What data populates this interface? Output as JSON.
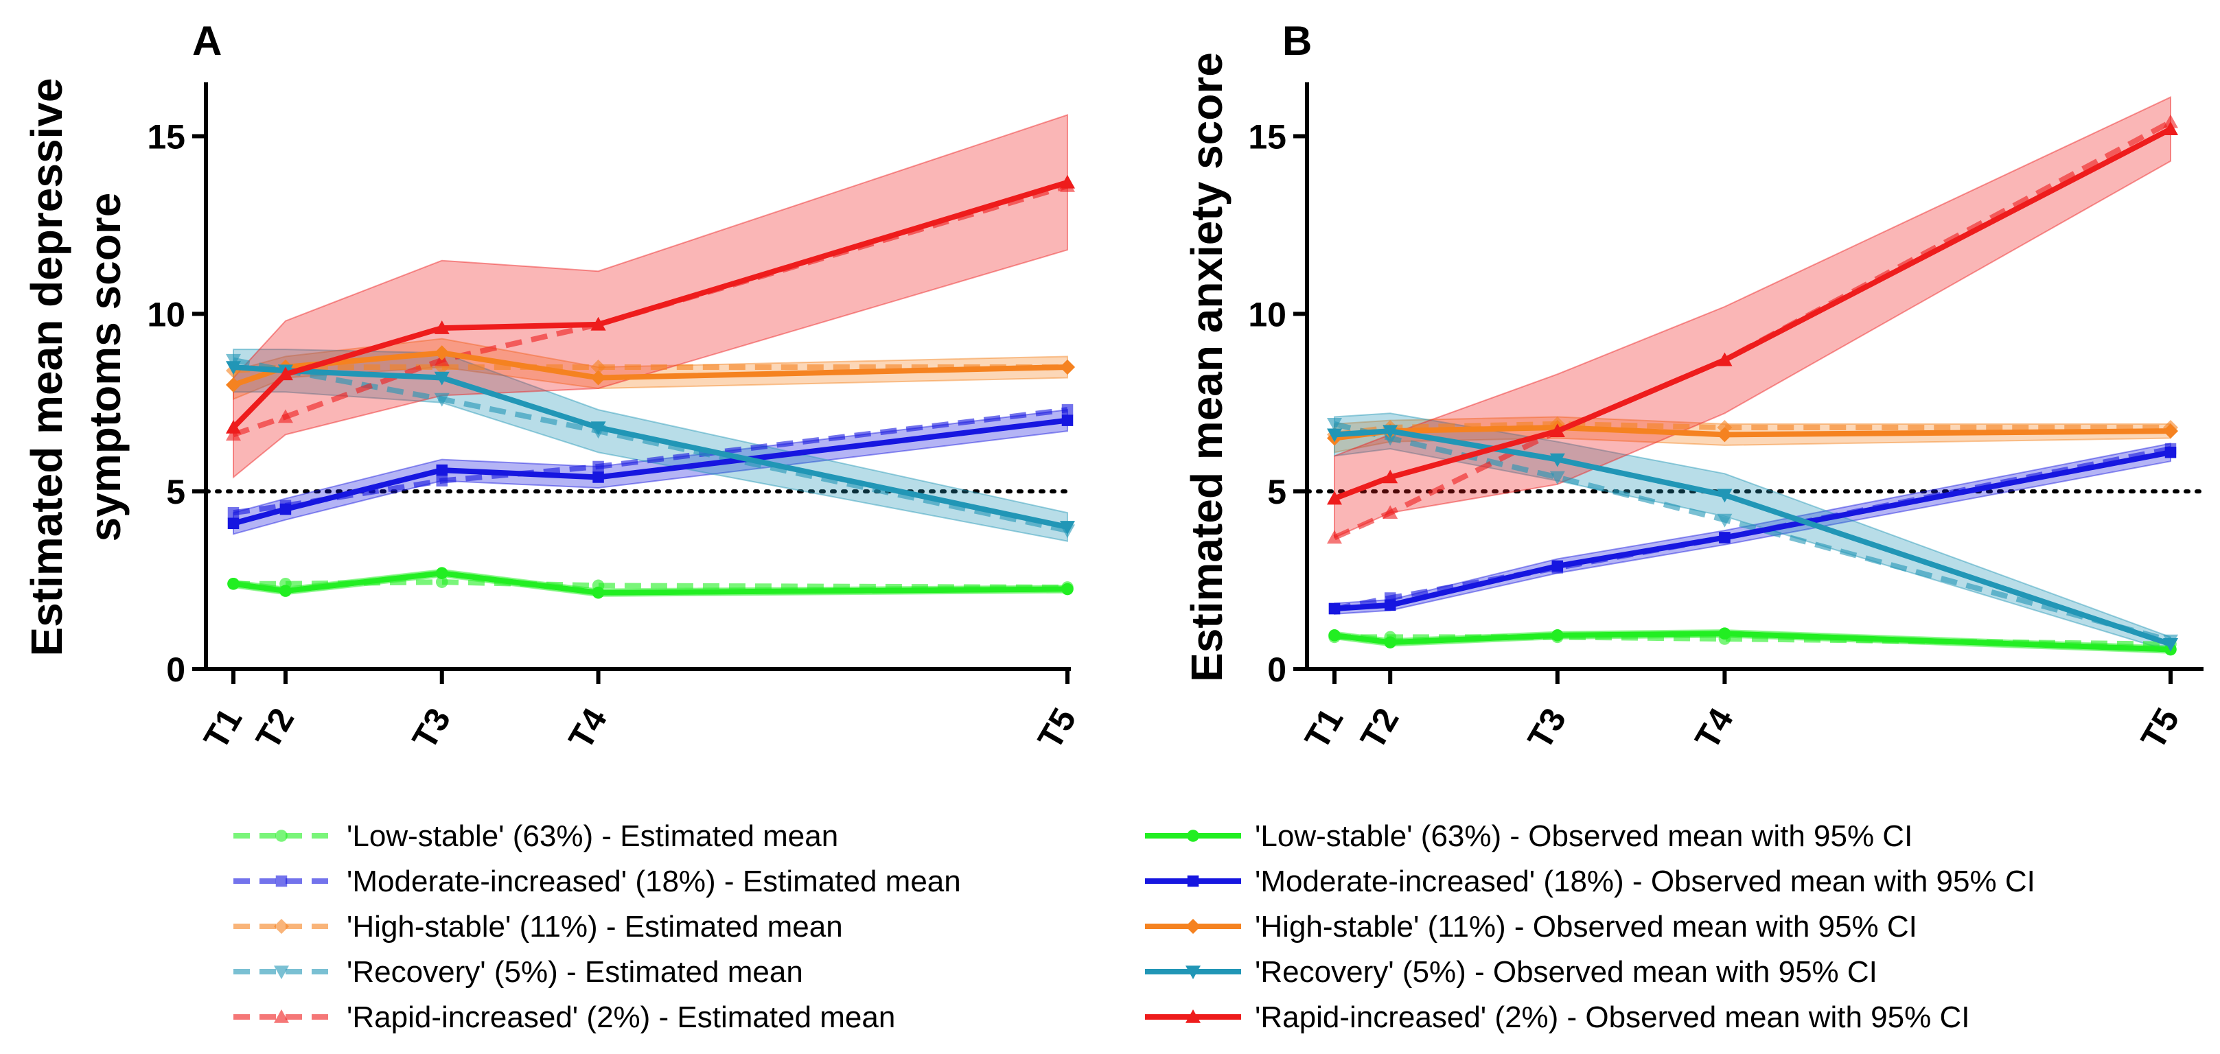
{
  "chart_data": [
    {
      "type": "line",
      "panel_label": "A",
      "ylabel_lines": [
        "Estimated mean depressive",
        "symptoms score"
      ],
      "x_categories": [
        "T1",
        "T2",
        "T3",
        "T4",
        "T5"
      ],
      "x_positions": [
        0,
        1,
        4,
        7,
        16
      ],
      "ylim": [
        0,
        17
      ],
      "yticks": [
        "0",
        "5",
        "10",
        "15"
      ],
      "reference_line": 5,
      "series": [
        {
          "name": "'Low-stable' (63%)",
          "color": "#22ee22",
          "marker": "circle",
          "observed": [
            2.4,
            2.2,
            2.7,
            2.15,
            2.25
          ],
          "ci_low": [
            2.3,
            2.1,
            2.6,
            2.05,
            2.15
          ],
          "ci_high": [
            2.5,
            2.3,
            2.8,
            2.25,
            2.35
          ],
          "estimated": [
            2.4,
            2.4,
            2.45,
            2.35,
            2.3
          ]
        },
        {
          "name": "'Moderate-increased' (18%)",
          "color": "#1616e0",
          "marker": "square",
          "observed": [
            4.1,
            4.5,
            5.6,
            5.4,
            7.0
          ],
          "ci_low": [
            3.8,
            4.2,
            5.3,
            5.1,
            6.7
          ],
          "ci_high": [
            4.4,
            4.8,
            5.9,
            5.7,
            7.3
          ],
          "estimated": [
            4.4,
            4.6,
            5.3,
            5.7,
            7.3
          ]
        },
        {
          "name": "'High-stable' (11%)",
          "color": "#f58220",
          "marker": "diamond",
          "observed": [
            8.0,
            8.5,
            8.9,
            8.2,
            8.5
          ],
          "ci_low": [
            7.6,
            8.2,
            8.5,
            7.9,
            8.2
          ],
          "ci_high": [
            8.4,
            8.8,
            9.3,
            8.5,
            8.8
          ],
          "estimated": [
            8.4,
            8.5,
            8.5,
            8.5,
            8.5
          ]
        },
        {
          "name": "'Recovery' (5%)",
          "color": "#2196b6",
          "marker": "triangle-down",
          "observed": [
            8.5,
            8.4,
            8.2,
            6.8,
            4.0
          ],
          "ci_low": [
            7.8,
            7.8,
            7.5,
            6.1,
            3.6
          ],
          "ci_high": [
            9.0,
            9.0,
            8.9,
            7.3,
            4.4
          ],
          "estimated": [
            8.7,
            8.4,
            7.6,
            6.7,
            3.9
          ]
        },
        {
          "name": "'Rapid-increased' (2%)",
          "color": "#ee1c1c",
          "marker": "triangle-up",
          "observed": [
            6.8,
            8.3,
            9.6,
            9.7,
            13.7
          ],
          "ci_low": [
            5.4,
            6.6,
            7.7,
            7.9,
            11.8
          ],
          "ci_high": [
            8.2,
            9.8,
            11.5,
            11.2,
            15.6
          ],
          "estimated": [
            6.6,
            7.1,
            8.7,
            9.7,
            13.6
          ]
        }
      ]
    },
    {
      "type": "line",
      "panel_label": "B",
      "ylabel_lines": [
        "Estimated mean anxiety score"
      ],
      "x_categories": [
        "T1",
        "T2",
        "T3",
        "T4",
        "T5"
      ],
      "x_positions": [
        0,
        1,
        4,
        7,
        15
      ],
      "ylim": [
        0,
        17
      ],
      "yticks": [
        "0",
        "5",
        "10",
        "15"
      ],
      "reference_line": 5,
      "series": [
        {
          "name": "'Low-stable' (63%)",
          "color": "#22ee22",
          "marker": "circle",
          "observed": [
            0.95,
            0.75,
            0.95,
            1.0,
            0.55
          ],
          "ci_low": [
            0.85,
            0.65,
            0.85,
            0.9,
            0.45
          ],
          "ci_high": [
            1.05,
            0.85,
            1.05,
            1.1,
            0.65
          ],
          "estimated": [
            0.9,
            0.9,
            0.9,
            0.85,
            0.7
          ]
        },
        {
          "name": "'Moderate-increased' (18%)",
          "color": "#1616e0",
          "marker": "square",
          "observed": [
            1.7,
            1.8,
            2.9,
            3.7,
            6.1
          ],
          "ci_low": [
            1.55,
            1.65,
            2.7,
            3.5,
            5.85
          ],
          "ci_high": [
            1.85,
            1.95,
            3.1,
            3.9,
            6.35
          ],
          "estimated": [
            1.7,
            2.0,
            2.85,
            3.7,
            6.2
          ]
        },
        {
          "name": "'High-stable' (11%)",
          "color": "#f58220",
          "marker": "diamond",
          "observed": [
            6.5,
            6.7,
            6.8,
            6.6,
            6.7
          ],
          "ci_low": [
            6.1,
            6.4,
            6.5,
            6.3,
            6.5
          ],
          "ci_high": [
            6.9,
            7.0,
            7.1,
            6.9,
            6.9
          ],
          "estimated": [
            6.6,
            6.8,
            6.9,
            6.8,
            6.8
          ]
        },
        {
          "name": "'Recovery' (5%)",
          "color": "#2196b6",
          "marker": "triangle-down",
          "observed": [
            6.6,
            6.7,
            5.9,
            4.9,
            0.7
          ],
          "ci_low": [
            6.0,
            6.2,
            5.3,
            4.3,
            0.5
          ],
          "ci_high": [
            7.1,
            7.2,
            6.4,
            5.5,
            0.9
          ],
          "estimated": [
            6.9,
            6.5,
            5.4,
            4.2,
            0.8
          ]
        },
        {
          "name": "'Rapid-increased' (2%)",
          "color": "#ee1c1c",
          "marker": "triangle-up",
          "observed": [
            4.8,
            5.4,
            6.7,
            8.7,
            15.2
          ],
          "ci_low": [
            3.7,
            4.4,
            5.2,
            7.2,
            14.3
          ],
          "ci_high": [
            6.0,
            6.6,
            8.3,
            10.2,
            16.1
          ],
          "estimated": [
            3.7,
            4.4,
            6.7,
            8.7,
            15.4
          ]
        }
      ]
    }
  ],
  "legend": {
    "estimated_suffix": " - Estimated mean",
    "observed_suffix": " - Observed mean with 95% CI",
    "estimated_items": [
      "'Low-stable' (63%) - Estimated mean",
      "'Moderate-increased' (18%) - Estimated mean",
      "'High-stable' (11%) - Estimated mean",
      "'Recovery' (5%) - Estimated mean",
      "'Rapid-increased' (2%) - Estimated mean"
    ],
    "observed_items": [
      "'Low-stable' (63%) - Observed mean with 95% CI",
      "'Moderate-increased' (18%) - Observed mean with 95% CI",
      "'High-stable' (11%) - Observed mean with 95% CI",
      "'Recovery' (5%) - Observed mean with 95% CI",
      "'Rapid-increased' (2%) - Observed mean with 95% CI"
    ]
  }
}
